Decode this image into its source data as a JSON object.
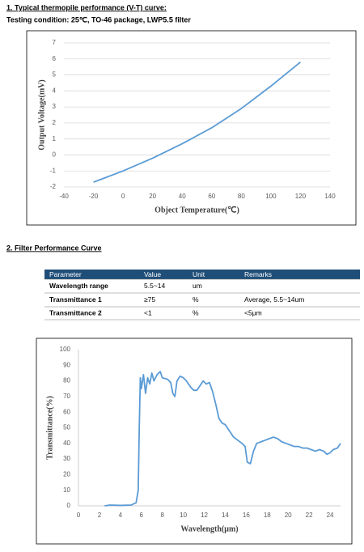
{
  "sections": [
    {
      "title": "1. Typical thermopile performance (V-T) curve:",
      "subtitle": "Testing condition: 25℃, TO-46 package, LWP5.5 filter"
    },
    {
      "title": "2. Filter Performance Curve"
    }
  ],
  "table": {
    "header": [
      "Parameter",
      "Value",
      "Unit",
      "Remarks"
    ],
    "rows": [
      [
        "Wavelength range",
        "5.5~14",
        "um",
        null
      ],
      [
        "Transmittance 1",
        "≥75",
        "%",
        "Average, 5.5~14um"
      ],
      [
        "Transmittance 2",
        "<1",
        "%",
        "<5μm"
      ]
    ]
  },
  "chart_data": [
    {
      "type": "line",
      "x_label": "Object Temperature(℃)",
      "y_label": "Output Voltage(mV)",
      "x": [
        -20,
        0,
        20,
        40,
        60,
        80,
        100,
        120
      ],
      "values": [
        -1.7,
        -1,
        -0.2,
        0.7,
        1.7,
        2.9,
        4.3,
        5.8
      ],
      "color": "#5b9bd5",
      "xlim": [
        -40,
        140
      ],
      "xticks": [
        -40,
        -20,
        0,
        20,
        40,
        60,
        80,
        100,
        120,
        140
      ],
      "ylim": [
        -2,
        7
      ],
      "yticks": [
        -2,
        -1,
        0,
        1,
        2,
        3,
        4,
        5,
        6,
        7
      ],
      "grid": true
    },
    {
      "type": "line",
      "x_label": "Wavelength(μm)",
      "y_label": "Transmittance(%)",
      "x": [
        2.5,
        3,
        4,
        5,
        5.5,
        5.7,
        5.8,
        5.9,
        6.0,
        6.2,
        6.4,
        6.6,
        6.8,
        7.0,
        7.2,
        7.5,
        7.8,
        8.0,
        8.5,
        8.8,
        9.0,
        9.2,
        9.4,
        9.7,
        10.0,
        10.3,
        10.7,
        11.0,
        11.3,
        11.6,
        11.9,
        12.2,
        12.5,
        12.8,
        13.1,
        13.4,
        13.7,
        14.0,
        14.4,
        14.8,
        15.2,
        15.6,
        15.9,
        16.1,
        16.4,
        16.7,
        17.0,
        17.4,
        17.8,
        18.2,
        18.6,
        19.0,
        19.4,
        19.8,
        20.2,
        20.6,
        21.0,
        21.4,
        21.8,
        22.2,
        22.6,
        23.0,
        23.4,
        23.7,
        24.0,
        24.3,
        24.7,
        25.0
      ],
      "values": [
        0,
        0.5,
        0.3,
        0.5,
        2,
        10,
        50,
        82,
        75,
        84,
        72,
        82,
        78,
        85,
        80,
        84,
        86,
        82,
        81,
        79,
        72,
        70,
        80,
        83,
        82,
        80,
        76,
        74,
        74,
        77,
        80,
        78,
        79,
        73,
        65,
        56,
        53,
        52,
        48,
        44,
        42,
        40,
        38,
        28,
        27,
        35,
        40,
        41,
        42,
        43,
        44,
        43,
        41,
        40,
        39,
        38,
        38,
        37,
        37,
        36,
        35,
        36,
        35,
        33,
        34,
        36,
        37,
        40
      ],
      "color": "#5b9bd5",
      "xlim": [
        0,
        25
      ],
      "xticks": [
        0,
        2,
        4,
        6,
        8,
        10,
        12,
        14,
        16,
        18,
        20,
        22,
        24
      ],
      "ylim": [
        0,
        100
      ],
      "yticks": [
        0,
        10,
        20,
        30,
        40,
        50,
        60,
        70,
        80,
        90,
        100
      ],
      "grid": false
    }
  ]
}
